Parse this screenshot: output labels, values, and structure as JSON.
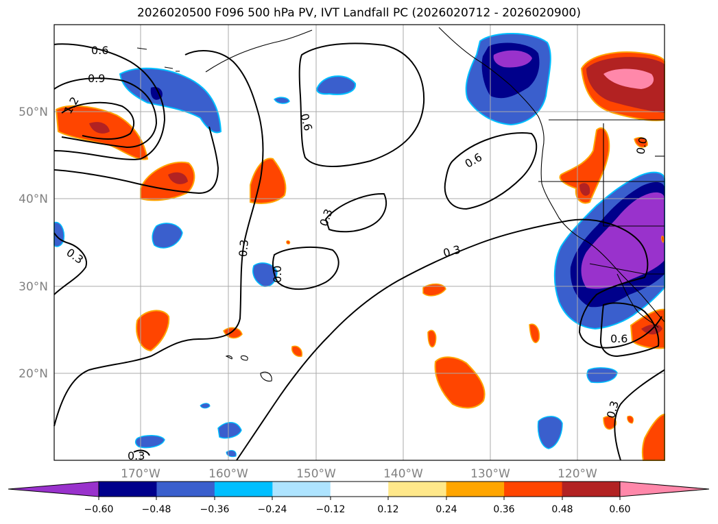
{
  "title": "2026020500 F096 500 hPa PV, IVT Landfall PC (2026020712 - 2026020900)",
  "map": {
    "lat_labels": [
      "50°N",
      "40°N",
      "30°N",
      "20°N"
    ],
    "lon_labels": [
      "170°W",
      "160°W",
      "150°W",
      "140°W",
      "130°W",
      "120°W"
    ],
    "contour_labels": [
      "0.6",
      "0.9",
      "1.2",
      "0.3",
      "0.6",
      "0.3",
      "0.6",
      "0.3",
      "0.0",
      "0.3",
      "0.6",
      "0.3",
      "0.3",
      "0.0"
    ]
  },
  "colorbar": {
    "ticks": [
      "−0.60",
      "−0.48",
      "−0.36",
      "−0.24",
      "−0.12",
      "0.12",
      "0.24",
      "0.36",
      "0.48",
      "0.60"
    ],
    "colors": [
      "#9932cc",
      "#00008b",
      "#3a5fcd",
      "#00bfff",
      "#aee4ff",
      "#ffffff",
      "#ffe88a",
      "#ffa500",
      "#ff4500",
      "#b22222",
      "#ff88aa"
    ]
  }
}
